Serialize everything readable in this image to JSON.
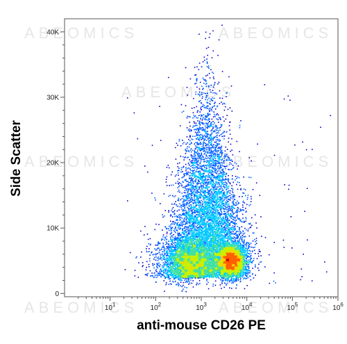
{
  "chart_data": {
    "type": "scatter",
    "style": "flow-cytometry-density",
    "xlabel": "anti-mouse CD26 PE",
    "ylabel": "Side Scatter",
    "x_scale": "log",
    "xlim": [
      1,
      1000000
    ],
    "x_ticks": [
      {
        "value": 10,
        "base": "10",
        "exp": "1"
      },
      {
        "value": 100,
        "base": "10",
        "exp": "2"
      },
      {
        "value": 1000,
        "base": "10",
        "exp": "3"
      },
      {
        "value": 10000,
        "base": "10",
        "exp": "4"
      },
      {
        "value": 100000,
        "base": "10",
        "exp": "5"
      },
      {
        "value": 1000000,
        "base": "10",
        "exp": "6"
      }
    ],
    "ylim": [
      -500,
      42000
    ],
    "y_ticks": [
      {
        "value": 0,
        "label": "0"
      },
      {
        "value": 10000,
        "label": "10K"
      },
      {
        "value": 20000,
        "label": "20K"
      },
      {
        "value": 30000,
        "label": "30K"
      },
      {
        "value": 40000,
        "label": "40K"
      }
    ],
    "density_peak": {
      "x": 4500,
      "y": 5000
    },
    "colormap": [
      "#0000cc",
      "#0060ff",
      "#00c8ff",
      "#40e0a0",
      "#c8f000",
      "#ffd000",
      "#ff6000",
      "#cc0000"
    ],
    "grid": false,
    "legend": "none"
  },
  "watermark": "ABEOMICS"
}
